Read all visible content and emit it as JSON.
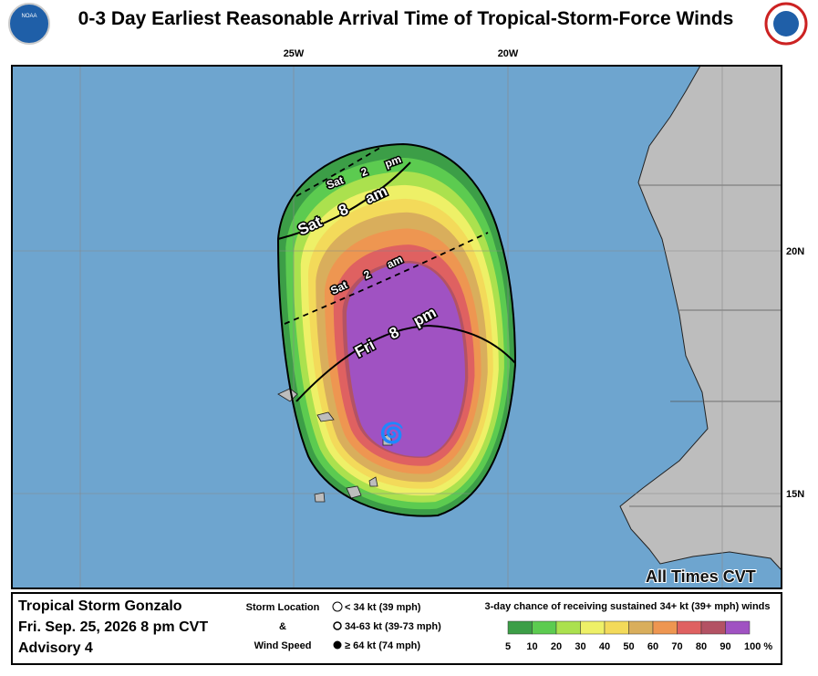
{
  "header": {
    "title": "0-3 Day Earliest Reasonable Arrival Time of Tropical-Storm-Force Winds",
    "logo_left": "NOAA"
  },
  "map": {
    "lon_labels": [
      "25W",
      "20W"
    ],
    "lat_labels": [
      "20N",
      "15N"
    ],
    "contour_labels": [
      "Sat 2 pm",
      "Sat 8 am",
      "Sat 2 am",
      "Fri 8 pm"
    ],
    "time_note": "All Times CVT"
  },
  "info": {
    "storm": "Tropical Storm Gonzalo",
    "date": "Fri. Sep. 25, 2026  8 pm CVT",
    "advisory": "Advisory 4"
  },
  "storm_legend": {
    "title_lines": [
      "Storm Location",
      "&",
      "Wind Speed"
    ],
    "items": [
      "< 34 kt (39 mph)",
      "34-63 kt (39-73 mph)",
      "≥ 64 kt (74 mph)"
    ]
  },
  "probability_legend": {
    "title": "3-day chance of receiving sustained 34+ kt (39+ mph) winds",
    "colors": [
      "#3c9e47",
      "#5ccb50",
      "#abe14e",
      "#eef067",
      "#f3da5a",
      "#d9ae5c",
      "#ee9651",
      "#df6161",
      "#b35264",
      "#a052c2"
    ],
    "labels": [
      "5",
      "10",
      "20",
      "30",
      "40",
      "50",
      "60",
      "70",
      "80",
      "90",
      "100 %"
    ]
  }
}
